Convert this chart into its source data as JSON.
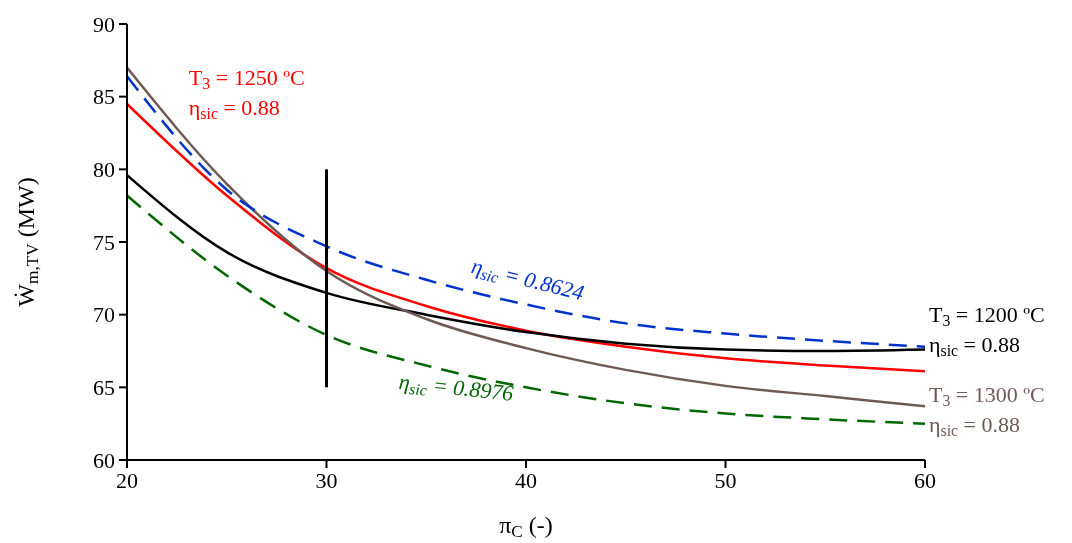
{
  "chart_data": {
    "type": "line",
    "xlabel": "π$_{C}$ (-)",
    "ylabel": "Ẇ$_{m,TV}$ (MW)",
    "xlim": [
      20,
      60
    ],
    "xticks": [
      20,
      30,
      40,
      50,
      60
    ],
    "ylim": [
      60,
      90
    ],
    "yticks": [
      60,
      65,
      70,
      75,
      80,
      85,
      90
    ],
    "marker": "none",
    "x": [
      20,
      25,
      30,
      35,
      40,
      45,
      50,
      55,
      60
    ],
    "series": [
      {
        "name": "T$_{3}$ = 1250 ºC\nη$_{sic}$ = 0.88",
        "color": "#ff0000",
        "line_style": "solid",
        "values": [
          84.5,
          78.2,
          73.2,
          70.6,
          68.9,
          67.8,
          67.0,
          66.5,
          66.1
        ]
      },
      {
        "name": "T$_{3}$ = 1200 ºC\nη$_{sic}$ = 0.88",
        "color": "#000000",
        "line_style": "solid",
        "values": [
          79.6,
          74.3,
          71.5,
          70.0,
          68.8,
          68.0,
          67.6,
          67.5,
          67.6
        ]
      },
      {
        "name": "T$_{3}$ = 1300 ºC\nη$_{sic}$ = 0.88",
        "color": "#6e5a55",
        "line_style": "solid",
        "values": [
          87.0,
          79.0,
          73.0,
          69.7,
          67.7,
          66.2,
          65.1,
          64.4,
          63.7
        ]
      },
      {
        "name": "η$_{sic}$ = 0.8624",
        "color": "#0033cc",
        "line_style": "dashed",
        "values": [
          86.4,
          78.6,
          74.7,
          72.4,
          70.7,
          69.4,
          68.7,
          68.2,
          67.8
        ]
      },
      {
        "name": "η$_{sic}$ = 0.8976",
        "color": "#006600",
        "line_style": "dashed",
        "values": [
          78.2,
          72.7,
          68.6,
          66.5,
          65.0,
          63.9,
          63.2,
          62.8,
          62.5
        ]
      },
      {
        "color": "#000000",
        "line_style": "solid",
        "x": [
          30,
          30
        ],
        "values": [
          65,
          80
        ]
      }
    ]
  }
}
